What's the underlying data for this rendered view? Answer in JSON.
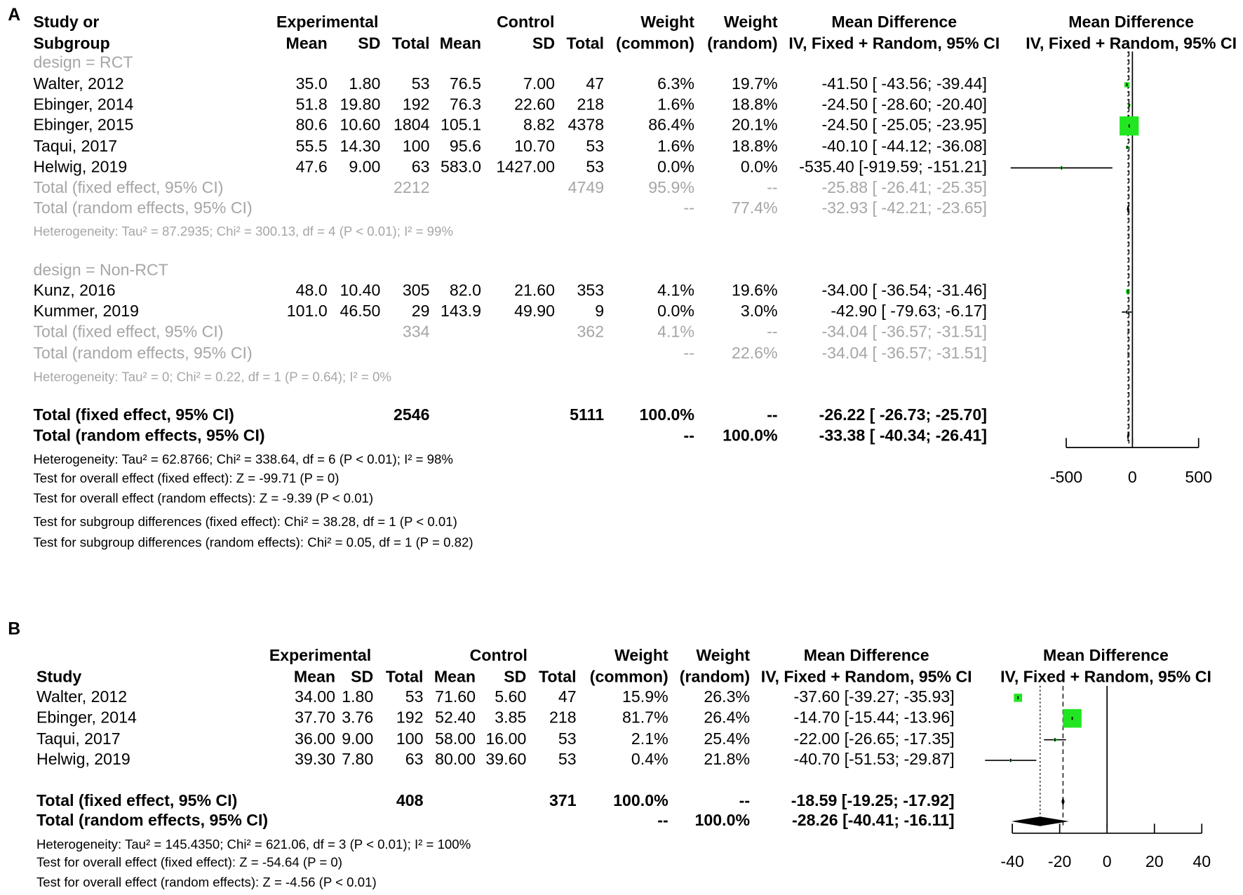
{
  "chart_data": [
    {
      "type": "forest",
      "panel": "A",
      "header_top": [
        "Study or",
        "Experimental",
        "Control",
        "Weight",
        "Weight",
        "Mean Difference",
        "Mean Difference"
      ],
      "header_bottom": [
        "Subgroup",
        "Mean",
        "SD",
        "Total",
        "Mean",
        "SD",
        "Total",
        "(common)",
        "(random)",
        "IV, Fixed + Random, 95% CI",
        "IV, Fixed + Random, 95% CI"
      ],
      "xlim": [
        -500,
        500
      ],
      "xticks": [
        -500,
        0,
        500
      ],
      "rows": [
        {
          "kind": "group",
          "label": "design = RCT"
        },
        {
          "kind": "study",
          "label": "Walter, 2012",
          "e_mean": "35.0",
          "e_sd": "1.80",
          "e_total": "53",
          "c_mean": "76.5",
          "c_sd": "7.00",
          "c_total": "47",
          "w_common": 6.3,
          "w_common_label": "6.3%",
          "w_random": 19.7,
          "w_random_label": "19.7%",
          "md": -41.5,
          "ci": [
            -43.56,
            -39.44
          ],
          "ci_label": "-41.50 [ -43.56; -39.44]"
        },
        {
          "kind": "study",
          "label": "Ebinger, 2014",
          "e_mean": "51.8",
          "e_sd": "19.80",
          "e_total": "192",
          "c_mean": "76.3",
          "c_sd": "22.60",
          "c_total": "218",
          "w_common": 1.6,
          "w_common_label": "1.6%",
          "w_random": 18.8,
          "w_random_label": "18.8%",
          "md": -24.5,
          "ci": [
            -28.6,
            -20.4
          ],
          "ci_label": "-24.50 [ -28.60; -20.40]"
        },
        {
          "kind": "study",
          "label": "Ebinger, 2015",
          "e_mean": "80.6",
          "e_sd": "10.60",
          "e_total": "1804",
          "c_mean": "105.1",
          "c_sd": "8.82",
          "c_total": "4378",
          "w_common": 86.4,
          "w_common_label": "86.4%",
          "w_random": 20.1,
          "w_random_label": "20.1%",
          "md": -24.5,
          "ci": [
            -25.05,
            -23.95
          ],
          "ci_label": "-24.50 [ -25.05; -23.95]"
        },
        {
          "kind": "study",
          "label": "Taqui, 2017",
          "e_mean": "55.5",
          "e_sd": "14.30",
          "e_total": "100",
          "c_mean": "95.6",
          "c_sd": "10.70",
          "c_total": "53",
          "w_common": 1.6,
          "w_common_label": "1.6%",
          "w_random": 18.8,
          "w_random_label": "18.8%",
          "md": -40.1,
          "ci": [
            -44.12,
            -36.08
          ],
          "ci_label": "-40.10 [ -44.12; -36.08]"
        },
        {
          "kind": "study",
          "label": "Helwig, 2019",
          "e_mean": "47.6",
          "e_sd": "9.00",
          "e_total": "63",
          "c_mean": "583.0",
          "c_sd": "1427.00",
          "c_total": "53",
          "w_common": 0.0,
          "w_common_label": "0.0%",
          "w_random": 0.0,
          "w_random_label": "0.0%",
          "md": -535.4,
          "ci": [
            -919.59,
            -151.21
          ],
          "ci_label": "-535.40 [-919.59; -151.21]"
        },
        {
          "kind": "subtotal_fixed",
          "label": "Total (fixed effect, 95% CI)",
          "e_total": "2212",
          "c_total": "4749",
          "w_common": 95.9,
          "w_common_label": "95.9%",
          "w_random_label": "--",
          "md": -25.88,
          "ci": [
            -26.41,
            -25.35
          ],
          "ci_label": "-25.88 [ -26.41; -25.35]"
        },
        {
          "kind": "subtotal_random",
          "label": "Total (random effects, 95% CI)",
          "w_common_label": "--",
          "w_random": 77.4,
          "w_random_label": "77.4%",
          "md": -32.93,
          "ci": [
            -42.21,
            -23.65
          ],
          "ci_label": "-32.93 [ -42.21; -23.65]"
        },
        {
          "kind": "het_sub",
          "label": "Heterogeneity: Tau² = 87.2935; Chi² = 300.13, df = 4 (P < 0.01); I² = 99%"
        },
        {
          "kind": "group",
          "label": "design = Non-RCT"
        },
        {
          "kind": "study",
          "label": "Kunz, 2016",
          "e_mean": "48.0",
          "e_sd": "10.40",
          "e_total": "305",
          "c_mean": "82.0",
          "c_sd": "21.60",
          "c_total": "353",
          "w_common": 4.1,
          "w_common_label": "4.1%",
          "w_random": 19.6,
          "w_random_label": "19.6%",
          "md": -34.0,
          "ci": [
            -36.54,
            -31.46
          ],
          "ci_label": "-34.00 [ -36.54; -31.46]"
        },
        {
          "kind": "study",
          "label": "Kummer, 2019",
          "e_mean": "101.0",
          "e_sd": "46.50",
          "e_total": "29",
          "c_mean": "143.9",
          "c_sd": "49.90",
          "c_total": "9",
          "w_common": 0.0,
          "w_common_label": "0.0%",
          "w_random": 3.0,
          "w_random_label": "3.0%",
          "md": -42.9,
          "ci": [
            -79.63,
            -6.17
          ],
          "ci_label": "-42.90 [ -79.63;  -6.17]"
        },
        {
          "kind": "subtotal_fixed",
          "label": "Total (fixed effect, 95% CI)",
          "e_total": "334",
          "c_total": "362",
          "w_common": 4.1,
          "w_common_label": "4.1%",
          "w_random_label": "--",
          "md": -34.04,
          "ci": [
            -36.57,
            -31.51
          ],
          "ci_label": "-34.04 [ -36.57; -31.51]"
        },
        {
          "kind": "subtotal_random",
          "label": "Total (random effects, 95% CI)",
          "w_common_label": "--",
          "w_random": 22.6,
          "w_random_label": "22.6%",
          "md": -34.04,
          "ci": [
            -36.57,
            -31.51
          ],
          "ci_label": "-34.04 [ -36.57; -31.51]"
        },
        {
          "kind": "het_sub",
          "label": "Heterogeneity: Tau² = 0; Chi² = 0.22, df = 1 (P = 0.64); I² = 0%"
        },
        {
          "kind": "total_fixed",
          "label": "Total (fixed effect, 95% CI)",
          "e_total": "2546",
          "c_total": "5111",
          "w_common": 100.0,
          "w_common_label": "100.0%",
          "w_random_label": "--",
          "md": -26.22,
          "ci": [
            -26.73,
            -25.7
          ],
          "ci_label": "-26.22 [ -26.73; -25.70]"
        },
        {
          "kind": "total_random",
          "label": "Total (random effects, 95% CI)",
          "w_common_label": "--",
          "w_random": 100.0,
          "w_random_label": "100.0%",
          "md": -33.38,
          "ci": [
            -40.34,
            -26.41
          ],
          "ci_label": "-33.38 [ -40.34; -26.41]"
        },
        {
          "kind": "note",
          "label": "Heterogeneity: Tau² = 62.8766; Chi² = 338.64, df = 6 (P < 0.01); I² = 98%"
        },
        {
          "kind": "note",
          "label": "Test for overall effect (fixed effect): Z = -99.71 (P = 0)"
        },
        {
          "kind": "note",
          "label": "Test for overall effect (random effects): Z = -9.39 (P < 0.01)"
        },
        {
          "kind": "note",
          "label": "Test for subgroup differences (fixed effect): Chi² = 38.28, df = 1 (P < 0.01)"
        },
        {
          "kind": "note",
          "label": "Test for subgroup differences (random effects): Chi² = 0.05, df = 1 (P = 0.82)"
        }
      ]
    },
    {
      "type": "forest",
      "panel": "B",
      "header_top": [
        "Experimental",
        "Control",
        "Weight",
        "Weight",
        "Mean Difference",
        "Mean Difference"
      ],
      "header_bottom": [
        "Study",
        "Mean",
        "SD",
        "Total",
        "Mean",
        "SD",
        "Total",
        "(common)",
        "(random)",
        "IV, Fixed + Random, 95% CI",
        "IV, Fixed + Random, 95% CI"
      ],
      "xlim": [
        -40,
        40
      ],
      "xticks": [
        -40,
        -20,
        0,
        20,
        40
      ],
      "rows": [
        {
          "kind": "study",
          "label": "Walter, 2012",
          "e_mean": "34.00",
          "e_sd": "1.80",
          "e_total": "53",
          "c_mean": "71.60",
          "c_sd": "5.60",
          "c_total": "47",
          "w_common": 15.9,
          "w_common_label": "15.9%",
          "w_random": 26.3,
          "w_random_label": "26.3%",
          "md": -37.6,
          "ci": [
            -39.27,
            -35.93
          ],
          "ci_label": "-37.60 [-39.27; -35.93]"
        },
        {
          "kind": "study",
          "label": "Ebinger, 2014",
          "e_mean": "37.70",
          "e_sd": "3.76",
          "e_total": "192",
          "c_mean": "52.40",
          "c_sd": "3.85",
          "c_total": "218",
          "w_common": 81.7,
          "w_common_label": "81.7%",
          "w_random": 26.4,
          "w_random_label": "26.4%",
          "md": -14.7,
          "ci": [
            -15.44,
            -13.96
          ],
          "ci_label": "-14.70 [-15.44; -13.96]"
        },
        {
          "kind": "study",
          "label": "Taqui, 2017",
          "e_mean": "36.00",
          "e_sd": "9.00",
          "e_total": "100",
          "c_mean": "58.00",
          "c_sd": "16.00",
          "c_total": "53",
          "w_common": 2.1,
          "w_common_label": "2.1%",
          "w_random": 25.4,
          "w_random_label": "25.4%",
          "md": -22.0,
          "ci": [
            -26.65,
            -17.35
          ],
          "ci_label": "-22.00 [-26.65; -17.35]"
        },
        {
          "kind": "study",
          "label": "Helwig, 2019",
          "e_mean": "39.30",
          "e_sd": "7.80",
          "e_total": "63",
          "c_mean": "80.00",
          "c_sd": "39.60",
          "c_total": "53",
          "w_common": 0.4,
          "w_common_label": "0.4%",
          "w_random": 21.8,
          "w_random_label": "21.8%",
          "md": -40.7,
          "ci": [
            -51.53,
            -29.87
          ],
          "ci_label": "-40.70 [-51.53; -29.87]"
        },
        {
          "kind": "total_fixed",
          "label": "Total (fixed effect, 95% CI)",
          "e_total": "408",
          "c_total": "371",
          "w_common": 100.0,
          "w_common_label": "100.0%",
          "w_random_label": "--",
          "md": -18.59,
          "ci": [
            -19.25,
            -17.92
          ],
          "ci_label": "-18.59 [-19.25; -17.92]"
        },
        {
          "kind": "total_random",
          "label": "Total (random effects, 95% CI)",
          "w_common_label": "--",
          "w_random": 100.0,
          "w_random_label": "100.0%",
          "md": -28.26,
          "ci": [
            -40.41,
            -16.11
          ],
          "ci_label": "-28.26 [-40.41; -16.11]"
        },
        {
          "kind": "note",
          "label": "Heterogeneity: Tau² = 145.4350; Chi² = 621.06, df = 3 (P < 0.01); I² = 100%"
        },
        {
          "kind": "note",
          "label": "Test for overall effect (fixed effect): Z = -54.64 (P = 0)"
        },
        {
          "kind": "note",
          "label": "Test for overall effect (random effects): Z = -4.56 (P < 0.01)"
        }
      ]
    }
  ]
}
